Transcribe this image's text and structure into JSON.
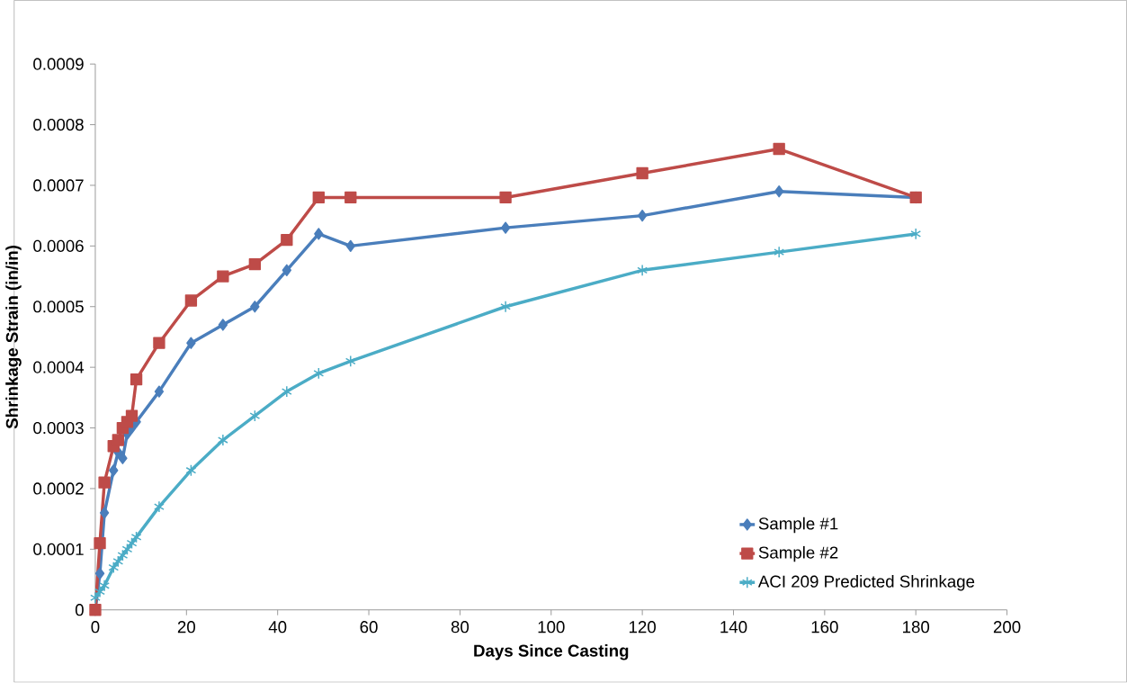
{
  "chart_data": {
    "type": "line",
    "xlabel": "Days Since Casting",
    "ylabel": "Shrinkage Strain (in/in)",
    "x": [
      0,
      1,
      2,
      4,
      5,
      6,
      7,
      8,
      9,
      14,
      21,
      28,
      35,
      42,
      49,
      56,
      90,
      120,
      150,
      180
    ],
    "series": [
      {
        "name": "Sample #1",
        "color": "#4a7ebb",
        "marker": "diamond",
        "values": [
          0,
          6e-05,
          0.00016,
          0.00023,
          0.00026,
          0.00025,
          0.00029,
          0.0003,
          0.00031,
          0.00036,
          0.00044,
          0.00047,
          0.0005,
          0.00056,
          0.00062,
          0.0006,
          0.00063,
          0.00065,
          0.00069,
          0.00068
        ]
      },
      {
        "name": "Sample #2",
        "color": "#be4b48",
        "marker": "square",
        "values": [
          0,
          0.00011,
          0.00021,
          0.00027,
          0.00028,
          0.0003,
          0.00031,
          0.00032,
          0.00038,
          0.00044,
          0.00051,
          0.00055,
          0.00057,
          0.00061,
          0.00068,
          0.00068,
          0.00068,
          0.00072,
          0.00076,
          0.00068
        ]
      },
      {
        "name": "ACI 209 Predicted Shrinkage",
        "color": "#4bacc6",
        "marker": "cross",
        "values": [
          2e-05,
          3e-05,
          4e-05,
          7e-05,
          8e-05,
          9e-05,
          0.0001,
          0.00011,
          0.00012,
          0.00017,
          0.00023,
          0.00028,
          0.00032,
          0.00036,
          0.00039,
          0.00041,
          0.0005,
          0.00056,
          0.00059,
          0.00062
        ]
      }
    ],
    "xlim": [
      0,
      200
    ],
    "xticks": [
      0,
      20,
      40,
      60,
      80,
      100,
      120,
      140,
      160,
      180,
      200
    ],
    "ylim": [
      0,
      0.0009
    ],
    "yticks": [
      0,
      0.0001,
      0.0002,
      0.0003,
      0.0004,
      0.0005,
      0.0006,
      0.0007,
      0.0008,
      0.0009
    ],
    "grid": false,
    "legend": "bottom right",
    "line_style": "solid"
  }
}
